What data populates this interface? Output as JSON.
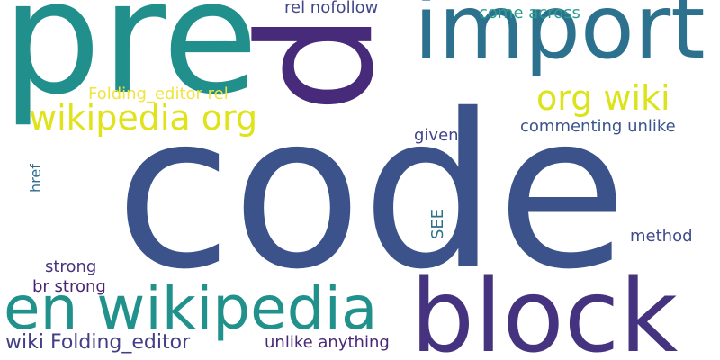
{
  "words": [
    {
      "text": "code",
      "color": "#3b528b",
      "rotated": false
    },
    {
      "text": "pre",
      "color": "#21908d",
      "rotated": false
    },
    {
      "text": "p",
      "color": "#472a7a",
      "rotated": true
    },
    {
      "text": "import",
      "color": "#2c728e",
      "rotated": false
    },
    {
      "text": "block",
      "color": "#46337f",
      "rotated": false
    },
    {
      "text": "en wikipedia",
      "color": "#21918c",
      "rotated": false
    },
    {
      "text": "wikipedia org",
      "color": "#e0e21a",
      "rotated": false
    },
    {
      "text": "org wiki",
      "color": "#dce319",
      "rotated": false
    },
    {
      "text": "wiki Folding_editor",
      "color": "#433e85",
      "rotated": false
    },
    {
      "text": "Folding_editor rel",
      "color": "#f0e442",
      "rotated": false
    },
    {
      "text": "rel nofollow",
      "color": "#404688",
      "rotated": false
    },
    {
      "text": "come across",
      "color": "#2a9d8f",
      "rotated": false
    },
    {
      "text": "commenting unlike",
      "color": "#3a548c",
      "rotated": false
    },
    {
      "text": "given",
      "color": "#414487",
      "rotated": false
    },
    {
      "text": "href",
      "color": "#2f6b8e",
      "rotated": true
    },
    {
      "text": "SEE",
      "color": "#2f6f8e",
      "rotated": true
    },
    {
      "text": "method",
      "color": "#3e4c8a",
      "rotated": false
    },
    {
      "text": "strong",
      "color": "#46337f",
      "rotated": false
    },
    {
      "text": "br strong",
      "color": "#482475",
      "rotated": false
    },
    {
      "text": "unlike anything",
      "color": "#482878",
      "rotated": false
    }
  ]
}
